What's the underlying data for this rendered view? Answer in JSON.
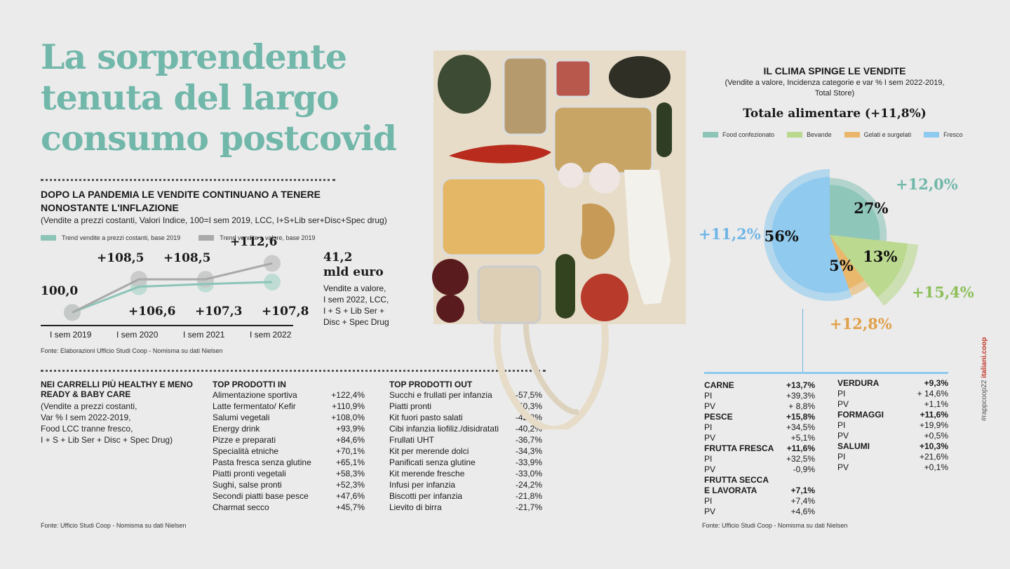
{
  "headline": {
    "line1": "La sorprendente",
    "line2": "tenuta del largo",
    "line3": "consumo postcovid"
  },
  "trend": {
    "title_line1": "DOPO LA PANDEMIA LE VENDITE CONTINUANO A TENERE",
    "title_line2": "NONOSTANTE L'INFLAZIONE",
    "subtitle": "(Vendite a prezzi costanti, Valori Indice, 100=I sem 2019, LCC, I+S+Lib ser+Disc+Spec drug)",
    "source": "Fonte: Elaborazioni Ufficio Studi Coop - Nomisma su dati Nielsen"
  },
  "bigstat": {
    "value": "41,2",
    "unit": "mld euro",
    "desc_line1": "Vendite a valore,",
    "desc_line2": "I sem 2022, LCC,",
    "desc_line3": "I + S + Lib Ser +",
    "desc_line4": "Disc + Spec Drug"
  },
  "healthy": {
    "title_line1": "NEI CARRELLI PIÙ HEALTHY E MENO",
    "title_line2": "READY & BABY CARE",
    "sub_line1": "(Vendite a prezzi costanti,",
    "sub_line2": "Var % I sem 2022-2019,",
    "sub_line3": "Food LCC tranne fresco,",
    "sub_line4": "I + S + Lib Ser + Disc + Spec Drug)",
    "source": "Fonte: Ufficio Studi Coop - Nomisma su dati Nielsen"
  },
  "top_in": {
    "title": "TOP PRODOTTI IN",
    "rows": [
      {
        "name": "Alimentazione sportiva",
        "value": "+122,4%"
      },
      {
        "name": "Latte fermentato/ Kefir",
        "value": "+110,9%"
      },
      {
        "name": "Salumi vegetali",
        "value": "+108,0%"
      },
      {
        "name": "Energy drink",
        "value": "+93,9%"
      },
      {
        "name": "Pizze e preparati",
        "value": "+84,6%"
      },
      {
        "name": "Specialità etniche",
        "value": "+70,1%"
      },
      {
        "name": "Pasta fresca senza glutine",
        "value": "+65,1%"
      },
      {
        "name": "Piatti pronti vegetali",
        "value": "+58,3%"
      },
      {
        "name": "Sughi, salse pronti",
        "value": "+52,3%"
      },
      {
        "name": "Secondi piatti base pesce",
        "value": "+47,6%"
      },
      {
        "name": "Charmat secco",
        "value": "+45,7%"
      }
    ]
  },
  "top_out": {
    "title": "TOP PRODOTTI OUT",
    "rows": [
      {
        "name": "Succhi e frullati per infanzia",
        "value": "-57,5%"
      },
      {
        "name": "Piatti pronti",
        "value": "-50,3%"
      },
      {
        "name": "Kit fuori pasto salati",
        "value": "-42,8%"
      },
      {
        "name": "Cibi infanzia liofiliz./disidratati",
        "value": "-40,2%"
      },
      {
        "name": "Frullati UHT",
        "value": "-36,7%"
      },
      {
        "name": "Kit per merende dolci",
        "value": "-34,3%"
      },
      {
        "name": "Panificati senza glutine",
        "value": "-33,9%"
      },
      {
        "name": "Kit merende fresche",
        "value": "-33,0%"
      },
      {
        "name": "Infusi per infanzia",
        "value": "-24,2%"
      },
      {
        "name": "Biscotti per infanzia",
        "value": "-21,8%"
      },
      {
        "name": "Lievito di birra",
        "value": "-21,7%"
      }
    ]
  },
  "clima": {
    "title": "IL CLIMA SPINGE LE VENDITE",
    "sub_line1": "(Vendite a valore, Incidenza categorie e var % I sem 2022-2019,",
    "sub_line2": "Total Store)",
    "total": "Totale alimentare (+11,8%)",
    "source": "Fonte: Ufficio Studi Coop - Nomisma su dati Nielsen"
  },
  "categories_left": [
    {
      "name": "CARNE",
      "value": "+13,7%",
      "head": true
    },
    {
      "name": "PI",
      "value": "+39,3%"
    },
    {
      "name": "PV",
      "value": "+ 8,8%"
    },
    {
      "name": "PESCE",
      "value": "+15,8%",
      "head": true
    },
    {
      "name": "PI",
      "value": "+34,5%"
    },
    {
      "name": "PV",
      "value": "+5,1%"
    },
    {
      "name": "FRUTTA FRESCA",
      "value": "+11,6%",
      "head": true
    },
    {
      "name": "PI",
      "value": "+32,5%"
    },
    {
      "name": "PV",
      "value": "-0,9%"
    },
    {
      "name": "FRUTTA SECCA",
      "value": "",
      "head": true
    },
    {
      "name": "E LAVORATA",
      "value": "+7,1%",
      "head": true
    },
    {
      "name": "PI",
      "value": "+7,4%"
    },
    {
      "name": "PV",
      "value": "+4,6%"
    }
  ],
  "categories_right": [
    {
      "name": "VERDURA",
      "value": "+9,3%",
      "head": true
    },
    {
      "name": "PI",
      "value": "+ 14,6%"
    },
    {
      "name": "PV",
      "value": "+1,1%"
    },
    {
      "name": "FORMAGGI",
      "value": "+11,6%",
      "head": true
    },
    {
      "name": "PI",
      "value": "+19,9%"
    },
    {
      "name": "PV",
      "value": "+0,5%"
    },
    {
      "name": "SALUMI",
      "value": "+10,3%",
      "head": true
    },
    {
      "name": "PI",
      "value": "+21,6%"
    },
    {
      "name": "PV",
      "value": "+0,1%"
    }
  ],
  "side_tag": {
    "prefix": "#rappcoop22 ",
    "brand": "italiani.coop"
  },
  "colors": {
    "teal": "#8cc5b8",
    "grey": "#a9a9a9",
    "green": "#b9d88d",
    "orange": "#eab66a",
    "blue": "#8ec9ef"
  },
  "chart_data": [
    {
      "type": "line",
      "categories": [
        "I sem 2019",
        "I sem 2020",
        "I sem 2021",
        "I sem 2022"
      ],
      "series": [
        {
          "name": "Trend vendite a prezzi costanti, base 2019",
          "values": [
            100.0,
            106.6,
            107.3,
            107.8
          ],
          "labels": [
            "100,0",
            "+106,6",
            "+107,3",
            "+107,8"
          ],
          "color": "#8cc5b8"
        },
        {
          "name": "Trend vendite a valore, base 2019",
          "values": [
            100.0,
            108.5,
            108.5,
            112.6
          ],
          "labels": [
            "",
            "+108,5",
            "+108,5",
            "+112,6"
          ],
          "color": "#a9a9a9"
        }
      ],
      "ylim": [
        97,
        115
      ]
    },
    {
      "type": "pie",
      "labels": [
        "Food confezionato",
        "Bevande",
        "Gelati e surgelati",
        "Fresco"
      ],
      "shares": [
        27,
        13,
        5,
        56
      ],
      "share_labels": [
        "27%",
        "13%",
        "5%",
        "56%"
      ],
      "growth": [
        12.0,
        15.4,
        12.8,
        11.2
      ],
      "growth_labels": [
        "+12,0%",
        "+15,4%",
        "+12,8%",
        "+11,2%"
      ],
      "colors": [
        "#8cc5b8",
        "#b9d88d",
        "#eab66a",
        "#8ec9ef"
      ]
    }
  ]
}
